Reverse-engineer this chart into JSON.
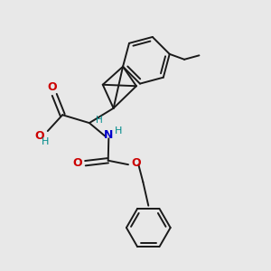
{
  "bg_color": "#e8e8e8",
  "line_color": "#1a1a1a",
  "o_color": "#cc0000",
  "n_color": "#0000cc",
  "h_color": "#008b8b",
  "figsize": [
    3.0,
    3.0
  ],
  "dpi": 100,
  "lw": 1.4,
  "xlim": [
    0,
    10
  ],
  "ylim": [
    0,
    10
  ]
}
